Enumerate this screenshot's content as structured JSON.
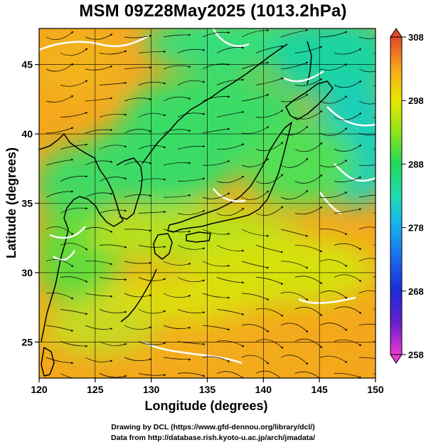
{
  "title": "MSM 09Z28May2025 (1013.2hPa)",
  "map": {
    "xlabel": "Longitude (degrees)",
    "ylabel": "Latitude  (degrees)",
    "lon_ticks": [
      "120",
      "125",
      "130",
      "135",
      "140",
      "145",
      "150"
    ],
    "lat_ticks": [
      "25",
      "30",
      "35",
      "40",
      "45"
    ],
    "lon_range": [
      120,
      150
    ],
    "lat_range": [
      22.4,
      47.6
    ],
    "colorbar_ticks": [
      "308",
      "298",
      "288",
      "278",
      "268",
      "258"
    ],
    "colorbar_range": [
      258,
      308
    ],
    "colors": {
      "warm": "#f7a11b",
      "mid": "#c9e400",
      "cool": "#1fe37a",
      "cold": "#10b8b0",
      "coast": "#000000",
      "contour": "#ffffff",
      "streamline": "#000000"
    }
  },
  "credits": {
    "line1": "Drawing by DCL (https://www.gfd-dennou.org/library/dcl/)",
    "line2": "Data from http://database.rish.kyoto-u.ac.jp/arch/jmadata/"
  }
}
